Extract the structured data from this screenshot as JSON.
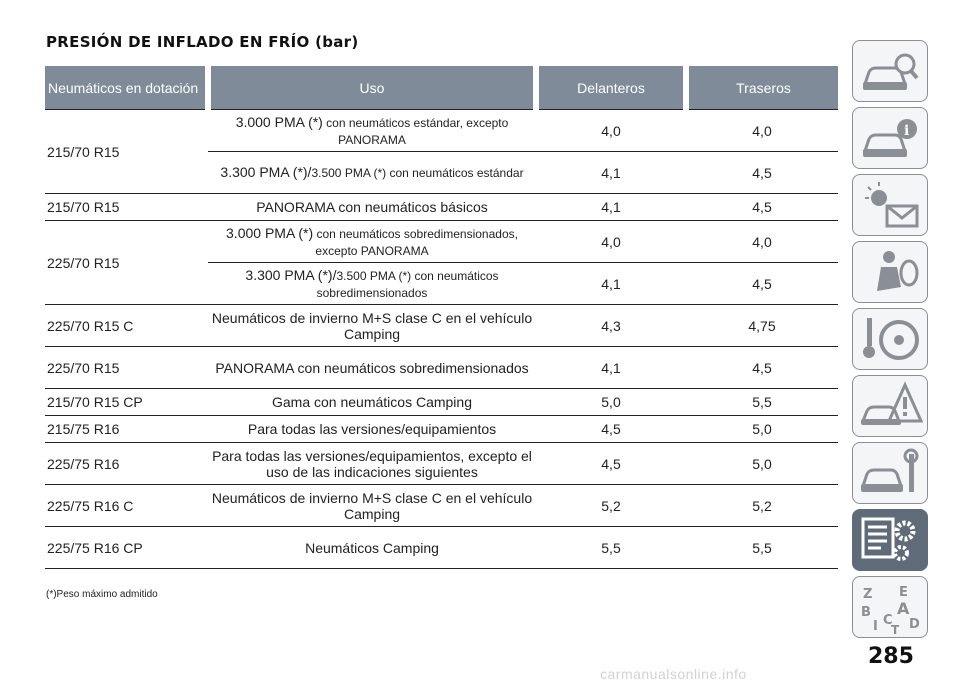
{
  "title": "PRESIÓN DE INFLADO EN FRÍO (bar)",
  "headers": {
    "tire": "Neumáticos en dotación",
    "use": "Uso",
    "front": "Delanteros",
    "rear": "Traseros"
  },
  "rows": [
    {
      "tire": "215/70 R15",
      "use_main": "3.000 PMA (*)",
      "use_small": " con neumáticos estándar, excepto PANORAMA",
      "front": "4,0",
      "rear": "4,0"
    },
    {
      "use_main": "3.300 PMA (*)/",
      "use_small": "3.500 PMA (*) con neumáticos estándar",
      "front": "4,1",
      "rear": "4,5"
    },
    {
      "tire": "215/70 R15",
      "use_main": "PANORAMA con neumáticos básicos",
      "front": "4,1",
      "rear": "4,5"
    },
    {
      "tire": "225/70 R15",
      "use_main": "3.000 PMA (*)",
      "use_small": " con neumáticos sobredimensionados, excepto PANORAMA",
      "front": "4,0",
      "rear": "4,0"
    },
    {
      "use_main": "3.300 PMA (*)/",
      "use_small": "3.500 PMA (*) con neumáticos sobredimensionados",
      "front": "4,1",
      "rear": "4,5"
    },
    {
      "tire": "225/70 R15 C",
      "use_main": "Neumáticos de invierno M+S clase C en el vehículo Camping",
      "front": "4,3",
      "rear": "4,75"
    },
    {
      "tire": "225/70 R15",
      "use_main": "PANORAMA con neumáticos sobredimensionados",
      "front": "4,1",
      "rear": "4,5"
    },
    {
      "tire": "215/70 R15 CP",
      "use_main": "Gama con neumáticos Camping",
      "front": "5,0",
      "rear": "5,5"
    },
    {
      "tire": "215/75 R16",
      "use_main": "Para todas las versiones/equipamientos",
      "front": "4,5",
      "rear": "5,0"
    },
    {
      "tire": "225/75 R16",
      "use_main": "Para todas las versiones/equipamientos, excepto el uso de las indicaciones siguientes",
      "front": "4,5",
      "rear": "5,0"
    },
    {
      "tire": "225/75 R16 C",
      "use_main": "Neumáticos de invierno M+S clase C en el vehículo Camping",
      "front": "5,2",
      "rear": "5,2"
    },
    {
      "tire": "225/75 R16 CP",
      "use_main": "Neumáticos Camping",
      "front": "5,5",
      "rear": "5,5"
    }
  ],
  "footnote": "(*)Peso máximo admitido",
  "page_number": "285",
  "watermark": "carmanualsonline.info",
  "side_tabs": [
    {
      "icon": "car-search-icon"
    },
    {
      "icon": "car-info-icon"
    },
    {
      "icon": "warning-light-envelope-icon"
    },
    {
      "icon": "person-airbag-icon"
    },
    {
      "icon": "steering-wheel-key-icon"
    },
    {
      "icon": "car-breakdown-warning-icon"
    },
    {
      "icon": "car-wrench-icon"
    },
    {
      "icon": "specs-list-gears-icon",
      "active": true
    },
    {
      "icon": "alphabet-index-icon"
    }
  ],
  "colors": {
    "header_bg": "#7f8b99",
    "tab_active": "#5f6b78",
    "tab_border": "#8a8f96"
  }
}
